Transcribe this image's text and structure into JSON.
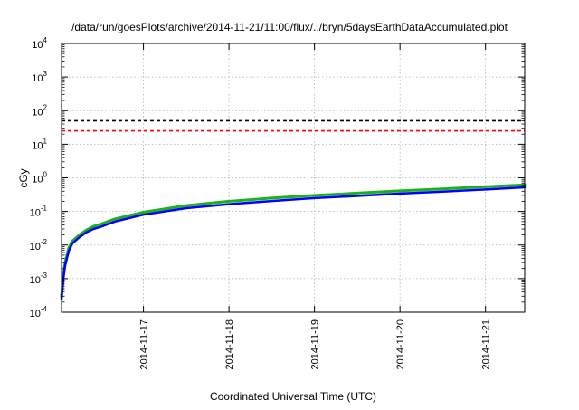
{
  "chart_data": {
    "type": "line",
    "title": "/data/run/goesPlots/archive/2014-11-21/11:00/flux/../bryn/5daysEarthDataAccumulated.plot",
    "xlabel": "Coordinated Universal Time (UTC)",
    "ylabel": "cGy",
    "y_scale": "log",
    "ylim": [
      0.0001,
      10000
    ],
    "y_ticks": [
      {
        "base": "10",
        "exp": "-4"
      },
      {
        "base": "10",
        "exp": "-3"
      },
      {
        "base": "10",
        "exp": "-2"
      },
      {
        "base": "10",
        "exp": "-1"
      },
      {
        "base": "10",
        "exp": "0"
      },
      {
        "base": "10",
        "exp": "1"
      },
      {
        "base": "10",
        "exp": "2"
      },
      {
        "base": "10",
        "exp": "3"
      },
      {
        "base": "10",
        "exp": "4"
      }
    ],
    "xlim": [
      "2014-11-16T01:00",
      "2014-11-21T11:00"
    ],
    "x_ticks": [
      "2014-11-17",
      "2014-11-18",
      "2014-11-19",
      "2014-11-20",
      "2014-11-21"
    ],
    "grid": true,
    "colors": {
      "black": "#000000",
      "red": "#ff0000",
      "green": "#19b219",
      "blue": "#0000ff"
    },
    "reference_lines": [
      {
        "y": 50,
        "color": "#000000",
        "style": "dashed"
      },
      {
        "y": 25,
        "color": "#ff0000",
        "style": "dashed"
      }
    ],
    "series": [
      {
        "color": "#19b219",
        "x": [
          "2014-11-16T01:00",
          "2014-11-16T01:30",
          "2014-11-16T02:00",
          "2014-11-16T03:00",
          "2014-11-16T04:00",
          "2014-11-16T06:00",
          "2014-11-16T08:00",
          "2014-11-16T10:00",
          "2014-11-16T12:00",
          "2014-11-16T16:00",
          "2014-11-17T00:00",
          "2014-11-17T12:00",
          "2014-11-18T00:00",
          "2014-11-18T12:00",
          "2014-11-19T00:00",
          "2014-11-19T12:00",
          "2014-11-20T00:00",
          "2014-11-20T12:00",
          "2014-11-21T00:00",
          "2014-11-21T11:00"
        ],
        "y": [
          0.0003,
          0.0013,
          0.003,
          0.008,
          0.013,
          0.02,
          0.028,
          0.036,
          0.042,
          0.06,
          0.095,
          0.15,
          0.2,
          0.25,
          0.3,
          0.35,
          0.41,
          0.47,
          0.54,
          0.62
        ]
      },
      {
        "color": "#0000ff",
        "x": [
          "2014-11-16T01:00",
          "2014-11-16T01:30",
          "2014-11-16T02:00",
          "2014-11-16T03:00",
          "2014-11-16T04:00",
          "2014-11-16T06:00",
          "2014-11-16T08:00",
          "2014-11-16T10:00",
          "2014-11-16T12:00",
          "2014-11-16T16:00",
          "2014-11-17T00:00",
          "2014-11-17T12:00",
          "2014-11-18T00:00",
          "2014-11-18T12:00",
          "2014-11-19T00:00",
          "2014-11-19T12:00",
          "2014-11-20T00:00",
          "2014-11-20T12:00",
          "2014-11-21T00:00",
          "2014-11-21T11:00"
        ],
        "y": [
          0.00025,
          0.001,
          0.0024,
          0.0065,
          0.011,
          0.017,
          0.024,
          0.03,
          0.035,
          0.05,
          0.08,
          0.125,
          0.165,
          0.205,
          0.25,
          0.29,
          0.34,
          0.39,
          0.45,
          0.52
        ]
      }
    ]
  }
}
